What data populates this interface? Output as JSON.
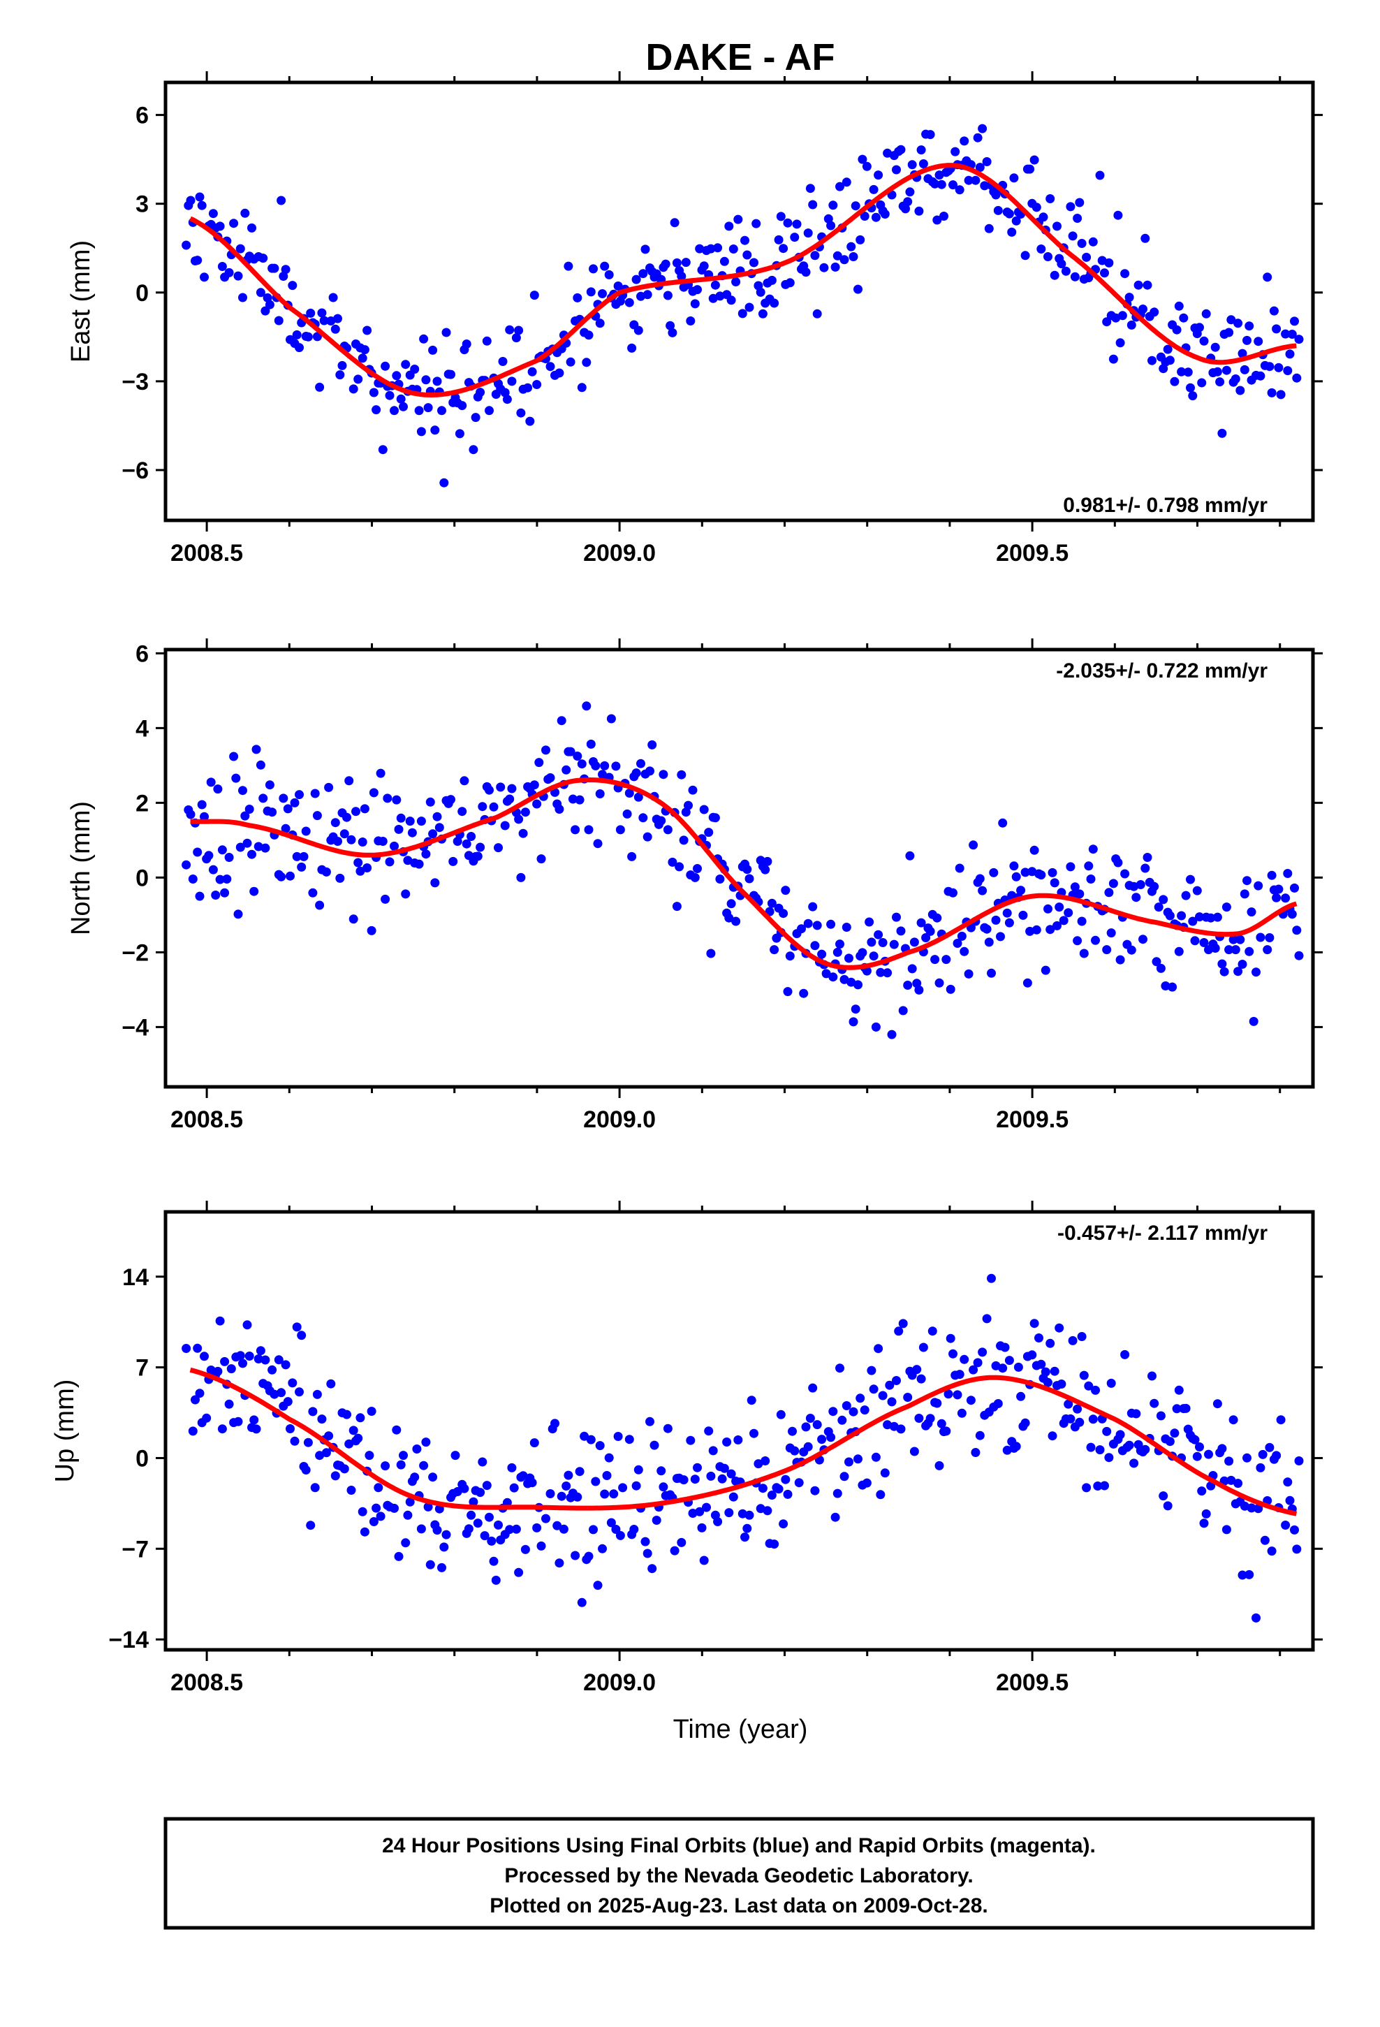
{
  "chart_data": {
    "title": "DAKE - AF",
    "xlabel": "Time (year)",
    "xlim": [
      2008.45,
      2009.84
    ],
    "xticks": [
      2008.5,
      2009.0,
      2009.5
    ],
    "xtick_labels": [
      "2008.5",
      "2009.0",
      "2009.5"
    ],
    "panels": [
      {
        "type": "scatter",
        "ylabel": "East (mm)",
        "ylim": [
          -7.7,
          7.1
        ],
        "yticks": [
          6,
          3,
          0,
          -3,
          -6
        ],
        "ytick_labels": [
          "6",
          "3",
          "0",
          "−3",
          "−6"
        ],
        "rate_label": "0.981+/- 0.798 mm/yr",
        "rate_position": "bottom-right",
        "points_color": "#0000ff",
        "fit_color": "#ff0000",
        "model": {
          "trend": 0.981,
          "amplitude": 3.3,
          "cycles": 0.72,
          "phase": 2.0,
          "offset": -0.3,
          "cosine_amp": 1.0,
          "cosine_cycles": 1.8,
          "noise": 1.05,
          "seed": 11
        },
        "series": [
          {
            "values": []
          }
        ],
        "fit": {
          "x": [
            2008.48,
            2008.6,
            2008.75,
            2008.9,
            2009.0,
            2009.2,
            2009.4,
            2009.55,
            2009.7,
            2009.82
          ],
          "y": [
            2.5,
            -0.5,
            -3.4,
            -2.3,
            0.0,
            1.0,
            4.3,
            1.2,
            -2.2,
            -1.8
          ]
        }
      },
      {
        "type": "scatter",
        "ylabel": "North (mm)",
        "ylim": [
          -5.6,
          6.1
        ],
        "yticks": [
          6,
          4,
          2,
          0,
          -2,
          -4
        ],
        "ytick_labels": [
          "6",
          "4",
          "2",
          "0",
          "−2",
          "−4"
        ],
        "rate_label": "-2.035+/- 0.722 mm/yr",
        "rate_position": "top-right",
        "points_color": "#0000ff",
        "fit_color": "#ff0000",
        "fit": {
          "x": [
            2008.48,
            2008.55,
            2008.7,
            2008.85,
            2008.95,
            2009.05,
            2009.15,
            2009.25,
            2009.35,
            2009.5,
            2009.65,
            2009.75,
            2009.82
          ],
          "y": [
            1.5,
            1.4,
            0.6,
            1.6,
            2.6,
            2.0,
            -0.4,
            -2.3,
            -2.0,
            -0.5,
            -1.2,
            -1.5,
            -0.7
          ]
        },
        "noise": 1.0,
        "seed": 23,
        "series": [
          {
            "values": []
          }
        ]
      },
      {
        "type": "scatter",
        "ylabel": "Up (mm)",
        "ylim": [
          -14.8,
          19.0
        ],
        "yticks": [
          14,
          7,
          0,
          -7,
          -14
        ],
        "ytick_labels": [
          "14",
          "7",
          "0",
          "−7",
          "−14"
        ],
        "rate_label": "-0.457+/- 2.117 mm/yr",
        "rate_position": "top-right",
        "points_color": "#0000ff",
        "fit_color": "#ff0000",
        "fit": {
          "x": [
            2008.48,
            2008.6,
            2008.75,
            2008.9,
            2009.05,
            2009.2,
            2009.35,
            2009.46,
            2009.6,
            2009.72,
            2009.82
          ],
          "y": [
            6.8,
            3.0,
            -3.0,
            -3.8,
            -3.5,
            -1.0,
            4.0,
            6.2,
            3.0,
            -1.8,
            -4.3
          ]
        },
        "noise": 3.4,
        "seed": 37,
        "series": [
          {
            "values": []
          }
        ]
      }
    ]
  },
  "caption": {
    "line1": "24 Hour Positions Using Final Orbits (blue) and Rapid Orbits (magenta).",
    "line2": "Processed by the Nevada Geodetic Laboratory.",
    "line3": "Plotted on 2025-Aug-23. Last data on 2009-Oct-28."
  }
}
